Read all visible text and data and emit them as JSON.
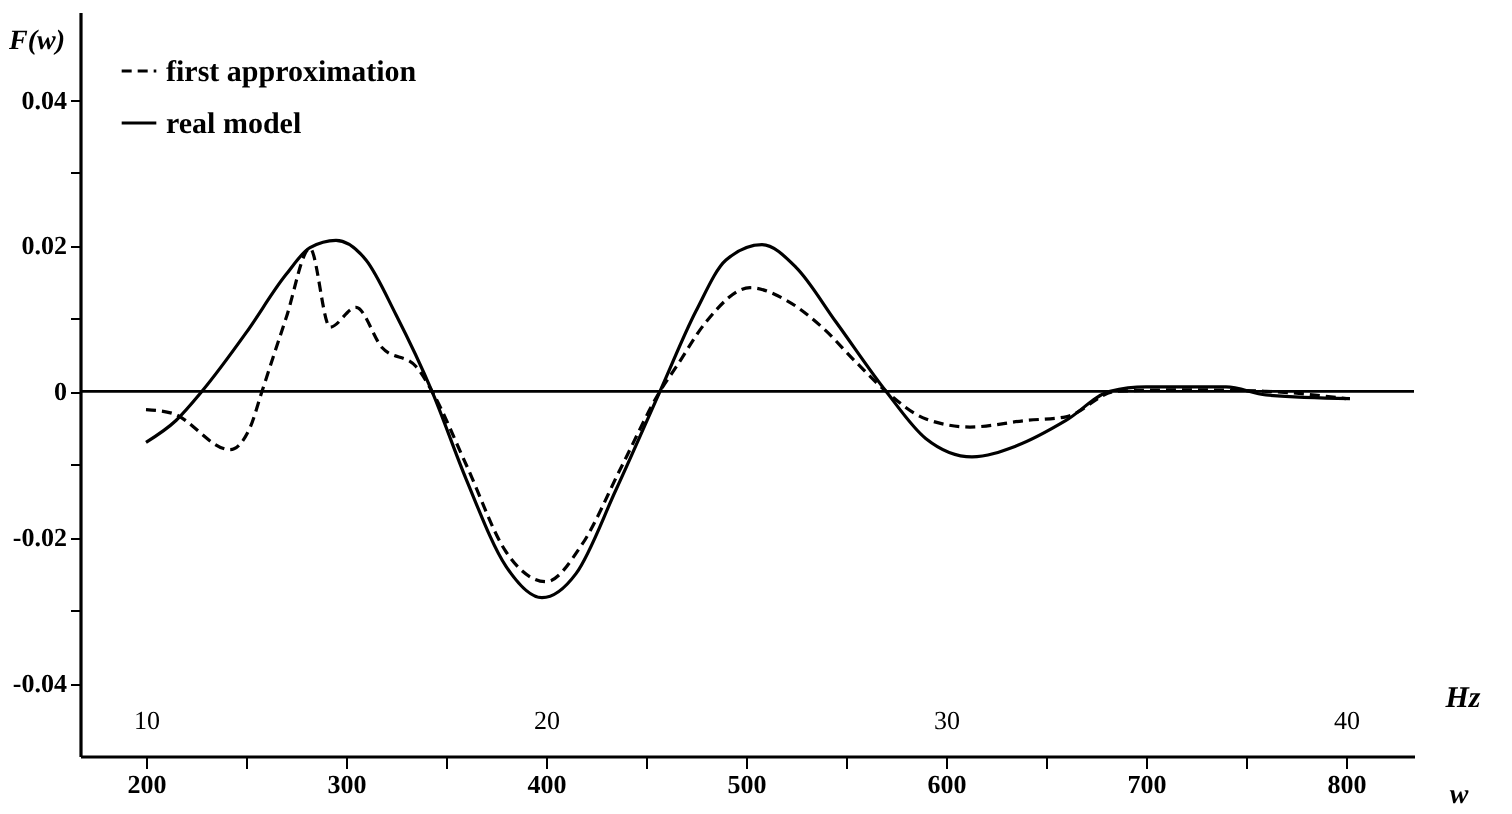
{
  "chart_data": {
    "type": "line",
    "xlabel": "w",
    "ylabel": "F(w)",
    "x2label": "Hz",
    "xlim": [
      167,
      834
    ],
    "xticks": [
      200,
      {
        "value": 250,
        "label": null
      },
      300,
      {
        "value": 350,
        "label": null
      },
      400,
      {
        "value": 450,
        "label": null
      },
      500,
      {
        "value": 550,
        "label": null
      },
      600,
      {
        "value": 650,
        "label": null
      },
      700,
      {
        "value": 750,
        "label": null
      },
      800
    ],
    "x2lim": [
      8.35,
      41.7
    ],
    "x2ticks": [
      10,
      20,
      30,
      40
    ],
    "ylim": [
      -0.05,
      0.052
    ],
    "yticks": [
      -0.04,
      {
        "value": -0.03,
        "label": null
      },
      -0.02,
      {
        "value": -0.01,
        "label": null
      },
      0,
      {
        "value": 0.01,
        "label": null
      },
      0.02,
      {
        "value": 0.03,
        "label": null
      },
      0.04
    ],
    "legend": "top left",
    "grid": false,
    "ref_lines": [
      {
        "axis": "y",
        "value": 0,
        "color": "#000000"
      }
    ],
    "series": [
      {
        "name": "first approximation",
        "color": "#000000",
        "line_style": "dashed",
        "x": [
          200,
          213,
          242,
          252,
          258,
          270,
          282,
          292,
          305,
          318,
          335,
          343,
          360,
          380,
          400,
          418,
          438,
          457,
          465,
          480,
          502,
          520,
          538,
          555,
          570,
          590,
          612,
          640,
          660,
          685,
          720,
          760,
          800
        ],
        "values": [
          -0.0025,
          -0.003,
          -0.008,
          -0.005,
          0,
          0.01,
          0.0196,
          0.0088,
          0.0115,
          0.006,
          0.0034,
          0,
          -0.01,
          -0.022,
          -0.0261,
          -0.021,
          -0.0102,
          0,
          0.0033,
          0.0095,
          0.0142,
          0.0125,
          0.0088,
          0.004,
          0,
          -0.0038,
          -0.0049,
          -0.004,
          -0.0035,
          0,
          0.0002,
          0,
          -0.001
        ]
      },
      {
        "name": "real model",
        "color": "#000000",
        "line_style": "solid",
        "x": [
          200,
          215,
          228,
          250,
          270,
          282,
          295,
          310,
          325,
          343,
          360,
          380,
          398,
          415,
          435,
          457,
          475,
          490,
          508,
          525,
          545,
          570,
          590,
          613,
          635,
          660,
          682,
          700,
          740,
          760,
          802
        ],
        "values": [
          -0.007,
          -0.004,
          0,
          0.008,
          0.016,
          0.0197,
          0.0207,
          0.018,
          0.0105,
          0,
          -0.012,
          -0.024,
          -0.0283,
          -0.025,
          -0.0135,
          0,
          0.011,
          0.018,
          0.0201,
          0.017,
          0.0095,
          0,
          -0.0065,
          -0.009,
          -0.0075,
          -0.004,
          0,
          0.0006,
          0.0006,
          -0.0005,
          -0.001
        ]
      }
    ]
  }
}
